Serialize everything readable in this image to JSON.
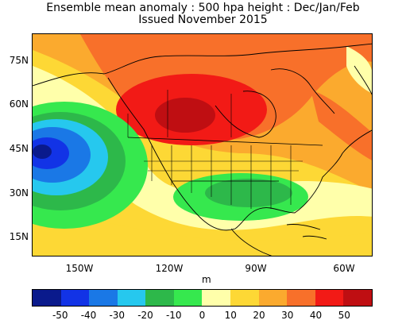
{
  "title_line1": "Ensemble mean anomaly : 500 hpa height : Dec/Jan/Feb",
  "title_line2": "Issued November 2015",
  "unit_label": "m",
  "lat_ticks": [
    "75N",
    "60N",
    "45N",
    "30N",
    "15N"
  ],
  "lon_ticks": [
    "150W",
    "120W",
    "90W",
    "60W"
  ],
  "colorbar": {
    "labels": [
      "-50",
      "-40",
      "-30",
      "-20",
      "-10",
      "0",
      "10",
      "20",
      "30",
      "40",
      "50"
    ],
    "colors": [
      "#0a1a8c",
      "#1233e6",
      "#1a78e6",
      "#26c8ee",
      "#2db84a",
      "#36e84e",
      "#ffffaa",
      "#fdd835",
      "#fbaa2e",
      "#f8702a",
      "#f21a16",
      "#bf0e12"
    ]
  },
  "colors": {
    "land_lines": "#000000",
    "frame": "#000000"
  }
}
